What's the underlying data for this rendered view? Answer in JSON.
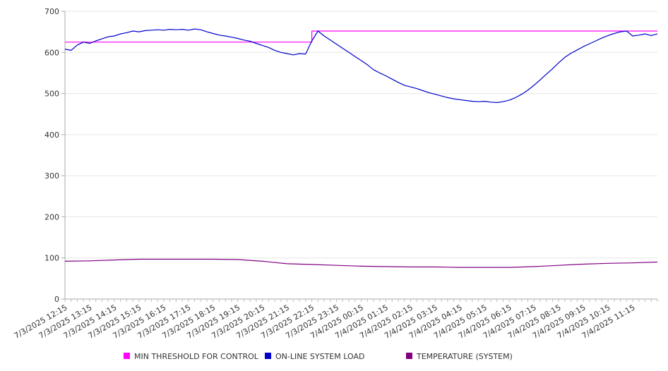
{
  "chart_data": {
    "type": "line",
    "title": "",
    "xlabel": "",
    "ylabel": "",
    "ylim": [
      0,
      700
    ],
    "yticks": [
      0,
      100,
      200,
      300,
      400,
      500,
      600,
      700
    ],
    "xlim": [
      "7/3/2025 12:15",
      "7/4/2025 12:15"
    ],
    "x_tick_labels": [
      "7/3/2025 12:15",
      "7/3/2025 13:15",
      "7/3/2025 14:15",
      "7/3/2025 15:15",
      "7/3/2025 16:15",
      "7/3/2025 17:15",
      "7/3/2025 18:15",
      "7/3/2025 19:15",
      "7/3/2025 20:15",
      "7/3/2025 21:15",
      "7/3/2025 22:15",
      "7/3/2025 23:15",
      "7/4/2025 00:15",
      "7/4/2025 01:15",
      "7/4/2025 02:15",
      "7/4/2025 03:15",
      "7/4/2025 04:15",
      "7/4/2025 05:15",
      "7/4/2025 06:15",
      "7/4/2025 07:15",
      "7/4/2025 08:15",
      "7/4/2025 09:15",
      "7/4/2025 10:15",
      "7/4/2025 11:15"
    ],
    "grid": true,
    "legend_position": "bottom",
    "series": [
      {
        "name": "MIN THRESHOLD FOR CONTROL",
        "color": "#ff00ff",
        "points": [
          [
            "7/3/2025 12:15",
            625
          ],
          [
            "7/3/2025 22:15",
            625
          ],
          [
            "7/3/2025 22:15",
            652
          ],
          [
            "7/4/2025 12:15",
            652
          ]
        ]
      },
      {
        "name": "ON-LINE SYSTEM LOAD",
        "color": "#0000cc",
        "points": [
          [
            "7/3/2025 12:15",
            608
          ],
          [
            "7/3/2025 12:30",
            605
          ],
          [
            "7/3/2025 12:45",
            618
          ],
          [
            "7/3/2025 13:00",
            625
          ],
          [
            "7/3/2025 13:15",
            622
          ],
          [
            "7/3/2025 13:30",
            628
          ],
          [
            "7/3/2025 13:45",
            633
          ],
          [
            "7/3/2025 14:00",
            638
          ],
          [
            "7/3/2025 14:15",
            640
          ],
          [
            "7/3/2025 14:30",
            645
          ],
          [
            "7/3/2025 14:45",
            648
          ],
          [
            "7/3/2025 15:00",
            652
          ],
          [
            "7/3/2025 15:15",
            650
          ],
          [
            "7/3/2025 15:30",
            653
          ],
          [
            "7/3/2025 15:45",
            654
          ],
          [
            "7/3/2025 16:00",
            655
          ],
          [
            "7/3/2025 16:15",
            654
          ],
          [
            "7/3/2025 16:30",
            656
          ],
          [
            "7/3/2025 16:45",
            655
          ],
          [
            "7/3/2025 17:00",
            656
          ],
          [
            "7/3/2025 17:15",
            654
          ],
          [
            "7/3/2025 17:30",
            657
          ],
          [
            "7/3/2025 17:45",
            655
          ],
          [
            "7/3/2025 18:00",
            650
          ],
          [
            "7/3/2025 18:15",
            646
          ],
          [
            "7/3/2025 18:30",
            642
          ],
          [
            "7/3/2025 18:45",
            640
          ],
          [
            "7/3/2025 19:00",
            637
          ],
          [
            "7/3/2025 19:15",
            634
          ],
          [
            "7/3/2025 19:30",
            630
          ],
          [
            "7/3/2025 19:45",
            627
          ],
          [
            "7/3/2025 20:00",
            622
          ],
          [
            "7/3/2025 20:15",
            617
          ],
          [
            "7/3/2025 20:30",
            612
          ],
          [
            "7/3/2025 20:45",
            605
          ],
          [
            "7/3/2025 21:00",
            600
          ],
          [
            "7/3/2025 21:15",
            597
          ],
          [
            "7/3/2025 21:30",
            594
          ],
          [
            "7/3/2025 21:45",
            597
          ],
          [
            "7/3/2025 22:00",
            596
          ],
          [
            "7/3/2025 22:15",
            628
          ],
          [
            "7/3/2025 22:30",
            652
          ],
          [
            "7/3/2025 22:45",
            640
          ],
          [
            "7/3/2025 23:00",
            630
          ],
          [
            "7/3/2025 23:15",
            620
          ],
          [
            "7/3/2025 23:30",
            610
          ],
          [
            "7/3/2025 23:45",
            600
          ],
          [
            "7/4/2025 00:00",
            590
          ],
          [
            "7/4/2025 00:15",
            580
          ],
          [
            "7/4/2025 00:30",
            570
          ],
          [
            "7/4/2025 00:45",
            558
          ],
          [
            "7/4/2025 01:00",
            550
          ],
          [
            "7/4/2025 01:15",
            543
          ],
          [
            "7/4/2025 01:30",
            535
          ],
          [
            "7/4/2025 01:45",
            527
          ],
          [
            "7/4/2025 02:00",
            520
          ],
          [
            "7/4/2025 02:15",
            516
          ],
          [
            "7/4/2025 02:30",
            512
          ],
          [
            "7/4/2025 02:45",
            507
          ],
          [
            "7/4/2025 03:00",
            502
          ],
          [
            "7/4/2025 03:15",
            498
          ],
          [
            "7/4/2025 03:30",
            494
          ],
          [
            "7/4/2025 03:45",
            490
          ],
          [
            "7/4/2025 04:00",
            487
          ],
          [
            "7/4/2025 04:15",
            485
          ],
          [
            "7/4/2025 04:30",
            483
          ],
          [
            "7/4/2025 04:45",
            481
          ],
          [
            "7/4/2025 05:00",
            480
          ],
          [
            "7/4/2025 05:15",
            481
          ],
          [
            "7/4/2025 05:30",
            479
          ],
          [
            "7/4/2025 05:45",
            478
          ],
          [
            "7/4/2025 06:00",
            480
          ],
          [
            "7/4/2025 06:15",
            484
          ],
          [
            "7/4/2025 06:30",
            490
          ],
          [
            "7/4/2025 06:45",
            498
          ],
          [
            "7/4/2025 07:00",
            508
          ],
          [
            "7/4/2025 07:15",
            520
          ],
          [
            "7/4/2025 07:30",
            533
          ],
          [
            "7/4/2025 07:45",
            547
          ],
          [
            "7/4/2025 08:00",
            560
          ],
          [
            "7/4/2025 08:15",
            575
          ],
          [
            "7/4/2025 08:30",
            588
          ],
          [
            "7/4/2025 08:45",
            598
          ],
          [
            "7/4/2025 09:00",
            606
          ],
          [
            "7/4/2025 09:15",
            614
          ],
          [
            "7/4/2025 09:30",
            621
          ],
          [
            "7/4/2025 09:45",
            628
          ],
          [
            "7/4/2025 10:00",
            635
          ],
          [
            "7/4/2025 10:15",
            641
          ],
          [
            "7/4/2025 10:30",
            646
          ],
          [
            "7/4/2025 10:45",
            650
          ],
          [
            "7/4/2025 11:00",
            652
          ],
          [
            "7/4/2025 11:15",
            640
          ],
          [
            "7/4/2025 11:30",
            642
          ],
          [
            "7/4/2025 11:45",
            645
          ],
          [
            "7/4/2025 12:00",
            641
          ],
          [
            "7/4/2025 12:15",
            645
          ]
        ]
      },
      {
        "name": "TEMPERATURE (SYSTEM)",
        "color": "#800080",
        "points": [
          [
            "7/3/2025 12:15",
            92
          ],
          [
            "7/3/2025 13:15",
            93
          ],
          [
            "7/3/2025 14:15",
            95
          ],
          [
            "7/3/2025 15:15",
            97
          ],
          [
            "7/3/2025 16:15",
            97
          ],
          [
            "7/3/2025 17:15",
            97
          ],
          [
            "7/3/2025 18:15",
            97
          ],
          [
            "7/3/2025 19:15",
            96
          ],
          [
            "7/3/2025 20:15",
            92
          ],
          [
            "7/3/2025 21:15",
            86
          ],
          [
            "7/3/2025 22:15",
            84
          ],
          [
            "7/3/2025 23:15",
            82
          ],
          [
            "7/4/2025 00:15",
            80
          ],
          [
            "7/4/2025 01:15",
            79
          ],
          [
            "7/4/2025 02:15",
            78
          ],
          [
            "7/4/2025 03:15",
            78
          ],
          [
            "7/4/2025 04:15",
            77
          ],
          [
            "7/4/2025 05:15",
            77
          ],
          [
            "7/4/2025 06:15",
            77
          ],
          [
            "7/4/2025 07:15",
            79
          ],
          [
            "7/4/2025 08:15",
            82
          ],
          [
            "7/4/2025 09:15",
            85
          ],
          [
            "7/4/2025 10:15",
            87
          ],
          [
            "7/4/2025 11:15",
            88
          ],
          [
            "7/4/2025 12:15",
            90
          ]
        ]
      }
    ]
  }
}
